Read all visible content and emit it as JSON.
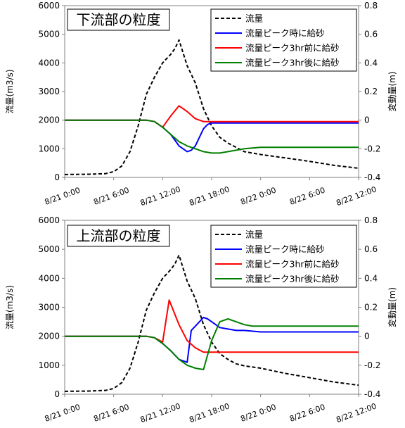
{
  "chart_data": [
    {
      "type": "line",
      "title": "下流部の粒度",
      "ylabel": "流量(m3/s)",
      "y2label": "変動量(m)",
      "ylim": [
        0,
        6000
      ],
      "y2lim": [
        -0.4,
        0.8
      ],
      "yticks": [
        "0",
        "1000",
        "2000",
        "3000",
        "4000",
        "5000",
        "6000"
      ],
      "y2ticks": [
        "-0.4",
        "-0.2",
        "0",
        "0.2",
        "0.4",
        "0.6",
        "0.8"
      ],
      "xticks": [
        "8/21 0:00",
        "8/21 6:00",
        "8/21 12:00",
        "8/21 18:00",
        "8/22 0:00",
        "8/22 6:00",
        "8/22 12:00"
      ],
      "xlim_hours": [
        0,
        36
      ],
      "legend_position": "top-right",
      "series": [
        {
          "name": "流量",
          "axis": "left",
          "color": "#000000",
          "dash": true,
          "x": [
            0,
            3,
            5,
            6,
            7,
            8,
            9,
            10,
            11,
            12,
            13,
            13.5,
            14,
            15,
            16,
            17,
            18,
            19,
            20,
            21,
            22,
            24,
            27,
            30,
            33,
            36
          ],
          "y": [
            100,
            110,
            130,
            200,
            400,
            900,
            1800,
            2900,
            3500,
            4000,
            4300,
            4500,
            4800,
            3900,
            3300,
            2400,
            1800,
            1400,
            1200,
            1050,
            900,
            800,
            680,
            560,
            420,
            320
          ]
        },
        {
          "name": "流量ピーク時に給砂",
          "axis": "right",
          "color": "#0000ff",
          "x": [
            0,
            9,
            10,
            11,
            12,
            13,
            14,
            15,
            15.5,
            16,
            16.5,
            17,
            17.5,
            18,
            21,
            24,
            27,
            30,
            33,
            36
          ],
          "y": [
            0,
            0,
            0,
            -0.01,
            -0.05,
            -0.1,
            -0.18,
            -0.22,
            -0.21,
            -0.18,
            -0.12,
            -0.06,
            -0.03,
            -0.02,
            -0.02,
            -0.02,
            -0.02,
            -0.02,
            -0.02,
            -0.02
          ]
        },
        {
          "name": "流量ピーク3hr前に給砂",
          "axis": "right",
          "color": "#ff0000",
          "x": [
            0,
            9,
            10,
            11,
            12,
            13,
            14,
            15,
            16,
            17,
            18,
            21,
            24,
            27,
            30,
            33,
            36
          ],
          "y": [
            0,
            0,
            0,
            -0.01,
            -0.05,
            0.03,
            0.1,
            0.06,
            0.01,
            -0.01,
            -0.01,
            -0.01,
            -0.01,
            -0.01,
            -0.01,
            -0.01,
            -0.01
          ]
        },
        {
          "name": "流量ピーク3hr後に給砂",
          "axis": "right",
          "color": "#008000",
          "x": [
            0,
            9,
            10,
            11,
            12,
            13,
            14,
            15,
            16,
            17,
            18,
            19,
            20,
            21,
            22,
            24,
            27,
            30,
            33,
            36
          ],
          "y": [
            0,
            0,
            0,
            -0.01,
            -0.05,
            -0.1,
            -0.15,
            -0.18,
            -0.2,
            -0.22,
            -0.23,
            -0.23,
            -0.22,
            -0.21,
            -0.2,
            -0.19,
            -0.19,
            -0.19,
            -0.19,
            -0.19
          ]
        }
      ]
    },
    {
      "type": "line",
      "title": "上流部の粒度",
      "ylabel": "流量(m3/s)",
      "y2label": "変動量(m)",
      "ylim": [
        0,
        6000
      ],
      "y2lim": [
        -0.4,
        0.8
      ],
      "yticks": [
        "0",
        "1000",
        "2000",
        "3000",
        "4000",
        "5000",
        "6000"
      ],
      "y2ticks": [
        "-0.4",
        "-0.2",
        "0",
        "0.2",
        "0.4",
        "0.6",
        "0.8"
      ],
      "xticks": [
        "8/21 0:00",
        "8/21 6:00",
        "8/21 12:00",
        "8/21 18:00",
        "8/22 0:00",
        "8/22 6:00",
        "8/22 12:00"
      ],
      "xlim_hours": [
        0,
        36
      ],
      "legend_position": "top-right",
      "series": [
        {
          "name": "流量",
          "axis": "left",
          "color": "#000000",
          "dash": true,
          "x": [
            0,
            3,
            5,
            6,
            7,
            8,
            9,
            10,
            11,
            12,
            13,
            13.5,
            14,
            15,
            16,
            17,
            18,
            19,
            20,
            21,
            22,
            24,
            27,
            30,
            33,
            36
          ],
          "y": [
            100,
            110,
            130,
            200,
            400,
            900,
            1800,
            2900,
            3500,
            4000,
            4300,
            4500,
            4800,
            3900,
            3300,
            2400,
            1800,
            1400,
            1200,
            1050,
            980,
            900,
            720,
            570,
            420,
            310
          ]
        },
        {
          "name": "流量ピーク時に給砂",
          "axis": "right",
          "color": "#0000ff",
          "x": [
            0,
            9,
            10,
            11,
            12,
            13,
            14,
            15,
            15.5,
            16,
            17,
            17.5,
            18,
            19,
            20,
            21,
            22,
            24,
            27,
            30,
            33,
            36
          ],
          "y": [
            0,
            0,
            0,
            -0.01,
            -0.05,
            -0.1,
            -0.16,
            -0.18,
            0.04,
            0.07,
            0.13,
            0.12,
            0.1,
            0.06,
            0.05,
            0.04,
            0.04,
            0.03,
            0.03,
            0.03,
            0.03,
            0.03
          ]
        },
        {
          "name": "流量ピーク3hr前に給砂",
          "axis": "right",
          "color": "#ff0000",
          "x": [
            0,
            9,
            10,
            11,
            12,
            12.8,
            14,
            15,
            16,
            17,
            18,
            21,
            24,
            27,
            30,
            33,
            36
          ],
          "y": [
            0,
            0,
            0,
            -0.01,
            -0.04,
            0.25,
            0.08,
            -0.03,
            -0.08,
            -0.11,
            -0.11,
            -0.11,
            -0.11,
            -0.11,
            -0.11,
            -0.11,
            -0.11
          ]
        },
        {
          "name": "流量ピーク3hr後に給砂",
          "axis": "right",
          "color": "#008000",
          "x": [
            0,
            9,
            10,
            11,
            12,
            13,
            14,
            15,
            16,
            17,
            18,
            19,
            20,
            21,
            22,
            23,
            24,
            27,
            30,
            33,
            36
          ],
          "y": [
            0,
            0,
            0,
            -0.01,
            -0.05,
            -0.1,
            -0.16,
            -0.2,
            -0.22,
            -0.23,
            -0.03,
            0.1,
            0.12,
            0.1,
            0.08,
            0.07,
            0.07,
            0.07,
            0.07,
            0.07,
            0.07
          ]
        }
      ]
    }
  ]
}
